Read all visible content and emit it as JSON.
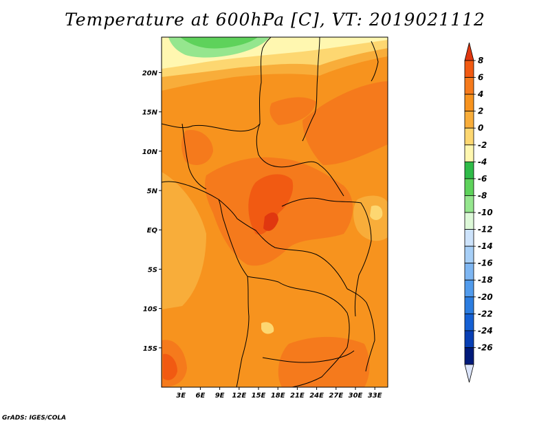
{
  "title": "Temperature at 600hPa [C], VT: 2019021112",
  "footer": "GrADS: IGES/COLA",
  "map": {
    "lon_range": [
      0,
      35
    ],
    "lat_range": [
      -20,
      24.5
    ],
    "lon_ticks": [
      "3E",
      "6E",
      "9E",
      "12E",
      "15E",
      "18E",
      "21E",
      "24E",
      "27E",
      "30E",
      "33E"
    ],
    "lat_ticks": [
      "20N",
      "15N",
      "10N",
      "5N",
      "EQ",
      "5S",
      "10S",
      "15S"
    ]
  },
  "colorbar": {
    "labels": [
      "8",
      "6",
      "4",
      "2",
      "0",
      "-2",
      "-4",
      "-6",
      "-8",
      "-10",
      "-12",
      "-14",
      "-16",
      "-18",
      "-20",
      "-22",
      "-24",
      "-26"
    ],
    "colors": [
      "#e0370f",
      "#f15a12",
      "#f57a1c",
      "#f7931e",
      "#f8ad3a",
      "#fdd771",
      "#fff7b0",
      "#2fbb48",
      "#5ed25b",
      "#95e68e",
      "#ddf8d8",
      "#cde3fb",
      "#a7cff7",
      "#7eb6f2",
      "#519bec",
      "#2c7de0",
      "#1560d4",
      "#083fb4",
      "#001a7a",
      "#dce5fb"
    ]
  },
  "chart_data": {
    "type": "heatmap",
    "title": "Temperature at 600hPa [C], VT: 2019021112",
    "variable": "Temperature",
    "level": "600hPa",
    "units": "C",
    "valid_time": "2019021112",
    "xlabel": "",
    "ylabel": "",
    "x_ticks": [
      "3E",
      "6E",
      "9E",
      "12E",
      "15E",
      "18E",
      "21E",
      "24E",
      "27E",
      "30E",
      "33E"
    ],
    "y_ticks": [
      "20N",
      "15N",
      "10N",
      "5N",
      "EQ",
      "5S",
      "10S",
      "15S"
    ],
    "lon_range": [
      0,
      35
    ],
    "lat_range": [
      -20,
      24.5
    ],
    "color_levels": [
      8,
      6,
      4,
      2,
      0,
      -2,
      -4,
      -6,
      -8,
      -10,
      -12,
      -14,
      -16,
      -18,
      -20,
      -22,
      -24,
      -26
    ],
    "regions": [
      {
        "name": "north-cold-band",
        "approx_value": -2
      },
      {
        "name": "far-north-green-patch",
        "approx_value": -6
      },
      {
        "name": "main-domain",
        "approx_value": 3
      },
      {
        "name": "central-warm-core",
        "approx_value": 5
      },
      {
        "name": "congo-basin-hot-spot",
        "approx_value": 6
      },
      {
        "name": "east-highlands-cool",
        "approx_value": 1
      }
    ]
  }
}
